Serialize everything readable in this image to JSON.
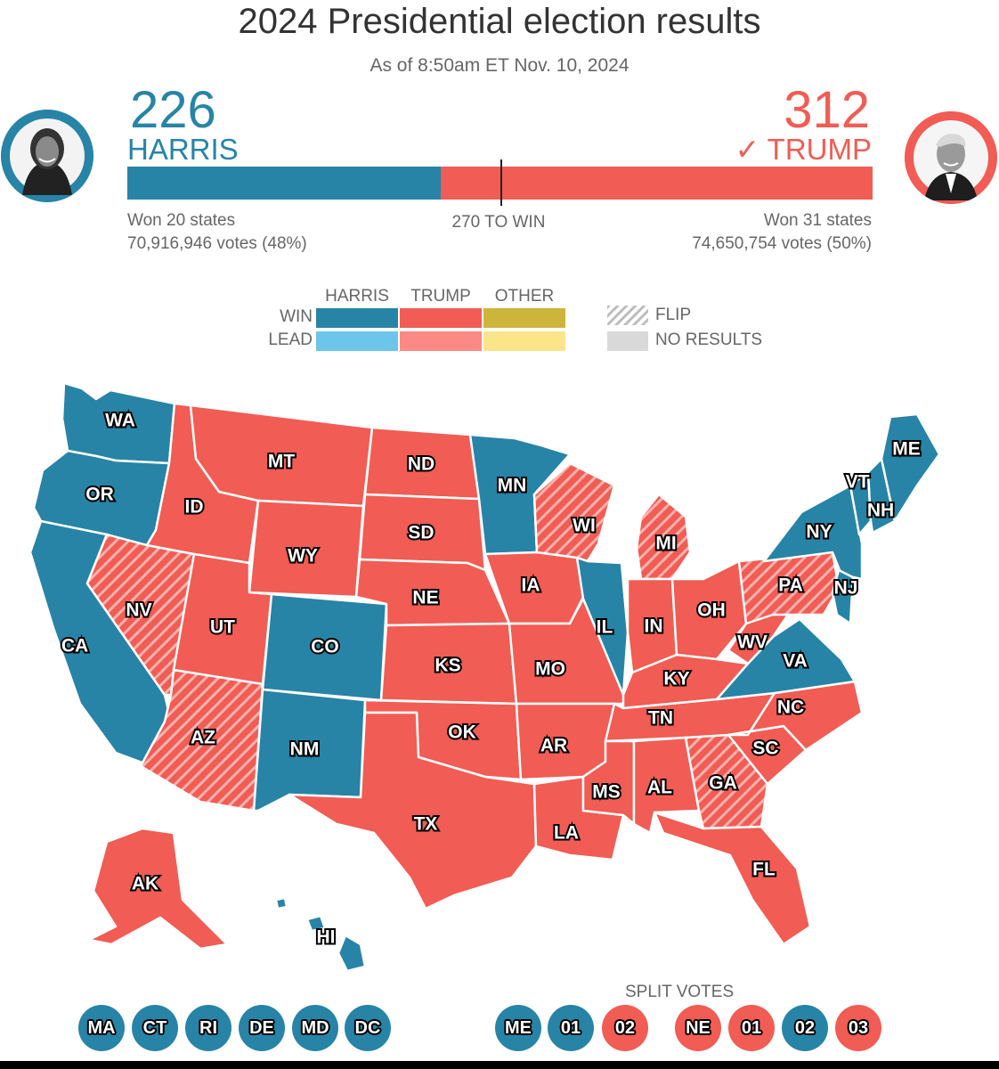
{
  "header": {
    "title": "2024 Presidential election results",
    "subtitle": "As of 8:50am ET Nov. 10, 2024"
  },
  "colors": {
    "harris_win": "#2784a6",
    "harris_lead": "#6cc5ea",
    "trump_win": "#f15c54",
    "trump_lead": "#fa8a83",
    "other_win": "#cdb43a",
    "other_lead": "#fbe58a",
    "no_results": "#d9d9d9"
  },
  "harris": {
    "electoral_votes": "226",
    "name": "HARRIS",
    "states_won": "Won 20 states",
    "popular_votes": "70,916,946 votes (48%)",
    "avatar": "harris-portrait-icon"
  },
  "trump": {
    "electoral_votes": "312",
    "name": "✓ TRUMP",
    "states_won": "Won 31 states",
    "popular_votes": "74,650,754 votes (50%)",
    "avatar": "trump-portrait-icon"
  },
  "bar": {
    "harris_value": 226,
    "trump_value": 312,
    "total": 538,
    "threshold": 270,
    "threshold_label": "270 TO WIN"
  },
  "legend": {
    "columns": [
      "HARRIS",
      "TRUMP",
      "OTHER"
    ],
    "rows": [
      "WIN",
      "LEAD"
    ],
    "flip_label": "FLIP",
    "no_results_label": "NO RESULTS"
  },
  "map": {
    "states": [
      {
        "abbr": "WA",
        "winner": "harris"
      },
      {
        "abbr": "OR",
        "winner": "harris"
      },
      {
        "abbr": "CA",
        "winner": "harris"
      },
      {
        "abbr": "NV",
        "winner": "trump",
        "flip": true
      },
      {
        "abbr": "ID",
        "winner": "trump"
      },
      {
        "abbr": "MT",
        "winner": "trump"
      },
      {
        "abbr": "WY",
        "winner": "trump"
      },
      {
        "abbr": "UT",
        "winner": "trump"
      },
      {
        "abbr": "AZ",
        "winner": "trump",
        "flip": true
      },
      {
        "abbr": "CO",
        "winner": "harris"
      },
      {
        "abbr": "NM",
        "winner": "harris"
      },
      {
        "abbr": "ND",
        "winner": "trump"
      },
      {
        "abbr": "SD",
        "winner": "trump"
      },
      {
        "abbr": "NE",
        "winner": "trump"
      },
      {
        "abbr": "KS",
        "winner": "trump"
      },
      {
        "abbr": "OK",
        "winner": "trump"
      },
      {
        "abbr": "TX",
        "winner": "trump"
      },
      {
        "abbr": "MN",
        "winner": "harris"
      },
      {
        "abbr": "IA",
        "winner": "trump"
      },
      {
        "abbr": "MO",
        "winner": "trump"
      },
      {
        "abbr": "AR",
        "winner": "trump"
      },
      {
        "abbr": "LA",
        "winner": "trump"
      },
      {
        "abbr": "WI",
        "winner": "trump",
        "flip": true
      },
      {
        "abbr": "IL",
        "winner": "harris"
      },
      {
        "abbr": "MI",
        "winner": "trump",
        "flip": true
      },
      {
        "abbr": "IN",
        "winner": "trump"
      },
      {
        "abbr": "OH",
        "winner": "trump"
      },
      {
        "abbr": "KY",
        "winner": "trump"
      },
      {
        "abbr": "TN",
        "winner": "trump"
      },
      {
        "abbr": "MS",
        "winner": "trump"
      },
      {
        "abbr": "AL",
        "winner": "trump"
      },
      {
        "abbr": "GA",
        "winner": "trump",
        "flip": true
      },
      {
        "abbr": "FL",
        "winner": "trump"
      },
      {
        "abbr": "SC",
        "winner": "trump"
      },
      {
        "abbr": "NC",
        "winner": "trump"
      },
      {
        "abbr": "VA",
        "winner": "harris"
      },
      {
        "abbr": "WV",
        "winner": "trump"
      },
      {
        "abbr": "PA",
        "winner": "trump",
        "flip": true
      },
      {
        "abbr": "NY",
        "winner": "harris"
      },
      {
        "abbr": "NJ",
        "winner": "harris"
      },
      {
        "abbr": "VT",
        "winner": "harris"
      },
      {
        "abbr": "NH",
        "winner": "harris"
      },
      {
        "abbr": "ME",
        "winner": "harris"
      },
      {
        "abbr": "AK",
        "winner": "trump"
      },
      {
        "abbr": "HI",
        "winner": "harris"
      }
    ]
  },
  "small_states": [
    {
      "abbr": "MA",
      "winner": "harris"
    },
    {
      "abbr": "CT",
      "winner": "harris"
    },
    {
      "abbr": "RI",
      "winner": "harris"
    },
    {
      "abbr": "DE",
      "winner": "harris"
    },
    {
      "abbr": "MD",
      "winner": "harris"
    },
    {
      "abbr": "DC",
      "winner": "harris"
    }
  ],
  "split_votes": {
    "title": "SPLIT VOTES",
    "items": [
      {
        "label": "ME",
        "winner": "harris"
      },
      {
        "label": "01",
        "winner": "harris"
      },
      {
        "label": "02",
        "winner": "trump"
      },
      {
        "label": "NE",
        "winner": "trump"
      },
      {
        "label": "01",
        "winner": "trump"
      },
      {
        "label": "02",
        "winner": "harris"
      },
      {
        "label": "03",
        "winner": "trump"
      }
    ]
  }
}
